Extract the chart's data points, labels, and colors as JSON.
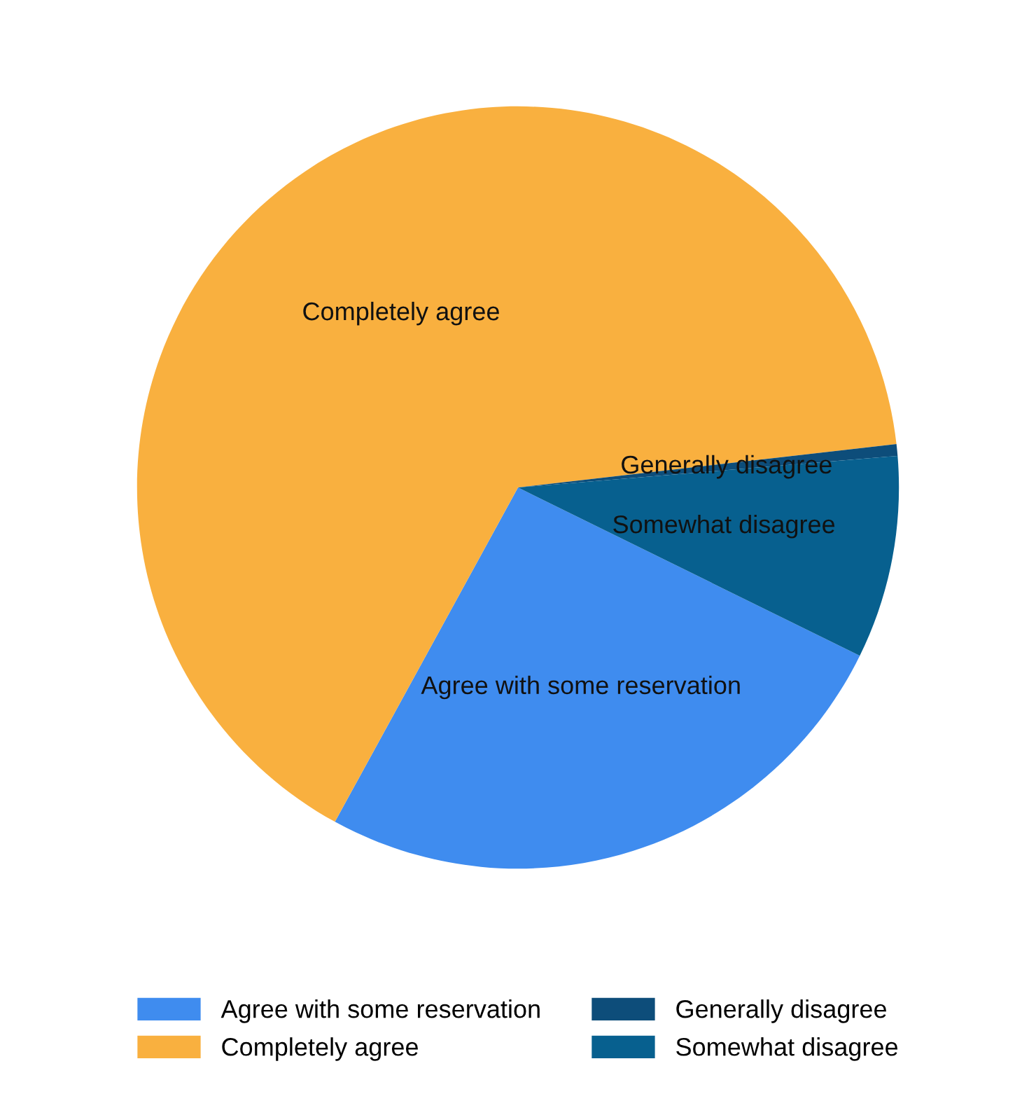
{
  "chart_data": {
    "type": "pie",
    "categories": [
      "Agree with some reservation",
      "Completely agree",
      "Generally disagree",
      "Somewhat disagree"
    ],
    "values": [
      25.7,
      65.2,
      0.5,
      8.6
    ],
    "colors": [
      "#3f8cef",
      "#f9b03f",
      "#0d4d7a",
      "#07608f"
    ],
    "legend": "bottom"
  }
}
